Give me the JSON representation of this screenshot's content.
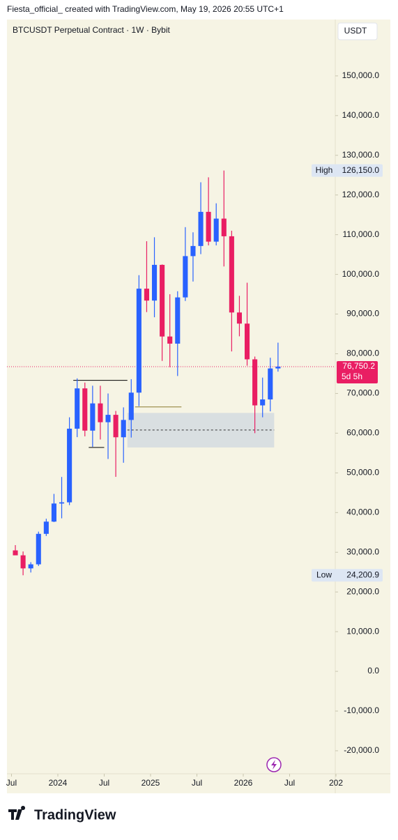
{
  "caption": "Fiesta_official_ created with TradingView.com, May 19, 2026 20:55 UTC+1",
  "brand": "TradingView",
  "chart_data": {
    "type": "candlestick",
    "title": "BTCUSDT Perpetual Contract · 1W · Bybit",
    "currency": "USDT",
    "x": [
      "2023-07",
      "2023-08",
      "2023-09",
      "2023-10",
      "2023-11",
      "2023-12",
      "2024-01",
      "2024-02",
      "2024-03",
      "2024-04",
      "2024-05",
      "2024-06",
      "2024-07",
      "2024-08",
      "2024-09",
      "2024-10",
      "2024-11",
      "2024-12",
      "2025-01",
      "2025-02",
      "2025-03",
      "2025-04",
      "2025-05",
      "2025-06",
      "2025-07",
      "2025-08",
      "2025-09",
      "2025-10",
      "2025-11",
      "2025-12",
      "2026-01",
      "2026-02",
      "2026-03",
      "2026-04",
      "2026-05"
    ],
    "open": [
      30470,
      29230,
      25940,
      26960,
      34640,
      37720,
      42280,
      42580,
      61130,
      71280,
      60640,
      67500,
      62760,
      64620,
      58970,
      63330,
      70210,
      96400,
      93400,
      102400,
      84350,
      82550,
      94200,
      104600,
      107150,
      115750,
      108250,
      114050,
      109600,
      90400,
      87600,
      78600,
      67000,
      68500,
      76300
    ],
    "high": [
      31800,
      30200,
      27500,
      35200,
      38450,
      44700,
      48970,
      64000,
      73800,
      72750,
      71950,
      71950,
      70000,
      65600,
      66500,
      73600,
      99800,
      108350,
      109350,
      102500,
      95000,
      95750,
      111900,
      110600,
      123200,
      124450,
      117900,
      126150,
      111000,
      94600,
      97900,
      79300,
      74000,
      79000,
      82800
    ],
    "low": [
      29500,
      24200.9,
      24900,
      26550,
      34100,
      37600,
      38550,
      41880,
      59000,
      59200,
      56550,
      58400,
      53500,
      49000,
      52550,
      58900,
      66800,
      90500,
      89200,
      78200,
      76600,
      74400,
      93300,
      98200,
      105100,
      107300,
      107300,
      102000,
      80600,
      84400,
      77000,
      60000,
      64000,
      65500,
      75500
    ],
    "close": [
      29230,
      25940,
      26960,
      34640,
      37720,
      42280,
      42580,
      61130,
      71280,
      60640,
      67500,
      62760,
      64620,
      58970,
      63330,
      70210,
      96400,
      93400,
      102400,
      84350,
      82550,
      94200,
      104600,
      107150,
      115750,
      108250,
      114050,
      109600,
      90400,
      87600,
      78600,
      67000,
      68500,
      76300,
      76750.2
    ],
    "up_color": "#2962ff",
    "down_color": "#e91e63",
    "xlim": [
      "2023-06",
      "2027-01"
    ],
    "xticks": [
      {
        "value": "2023-07",
        "label": "Jul"
      },
      {
        "value": "2024-01",
        "label": "2024"
      },
      {
        "value": "2024-07",
        "label": "Jul"
      },
      {
        "value": "2025-01",
        "label": "2025"
      },
      {
        "value": "2025-07",
        "label": "Jul"
      },
      {
        "value": "2026-01",
        "label": "2026"
      },
      {
        "value": "2026-07",
        "label": "Jul"
      },
      {
        "value": "2027-01",
        "label": "202"
      }
    ],
    "ylim": [
      -25800,
      164200
    ],
    "yticks": [
      {
        "value": -20000,
        "label": "-20,000.0"
      },
      {
        "value": -10000,
        "label": "-10,000.0"
      },
      {
        "value": 0,
        "label": "0.0"
      },
      {
        "value": 10000,
        "label": "10,000.0"
      },
      {
        "value": 20000,
        "label": "20,000.0"
      },
      {
        "value": 30000,
        "label": "30,000.0"
      },
      {
        "value": 40000,
        "label": "40,000.0"
      },
      {
        "value": 50000,
        "label": "50,000.0"
      },
      {
        "value": 60000,
        "label": "60,000.0"
      },
      {
        "value": 70000,
        "label": "70,000.0"
      },
      {
        "value": 80000,
        "label": "80,000.0"
      },
      {
        "value": 90000,
        "label": "90,000.0"
      },
      {
        "value": 100000,
        "label": "100,000.0"
      },
      {
        "value": 110000,
        "label": "110,000.0"
      },
      {
        "value": 120000,
        "label": "120,000.0"
      },
      {
        "value": 130000,
        "label": "130,000.0"
      },
      {
        "value": 140000,
        "label": "140,000.0"
      },
      {
        "value": 150000,
        "label": "150,000.0"
      }
    ],
    "price_line": {
      "value": 76750.2,
      "label": "76,750.2",
      "countdown": "5d 5h",
      "color": "#e91e63"
    },
    "high_marker": {
      "name": "High",
      "value": 126150,
      "label": "126,150.0"
    },
    "low_marker": {
      "name": "Low",
      "value": 24200.9,
      "label": "24,200.9"
    },
    "zone": {
      "from": "2024-10",
      "to": "2026-04",
      "low": 56400,
      "high": 65100,
      "mid": 60800
    },
    "levels": [
      {
        "value": 73300,
        "from": "2024-03",
        "to": "2024-10",
        "color": "#000000"
      },
      {
        "value": 56400,
        "from": "2024-05",
        "to": "2024-07",
        "color": "#000000"
      },
      {
        "value": 66600,
        "from": "2024-11",
        "to": "2025-05",
        "color": "#8a7a2e"
      }
    ]
  }
}
